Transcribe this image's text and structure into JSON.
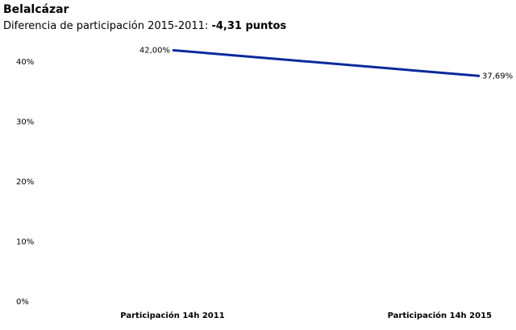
{
  "chart_data": {
    "type": "line",
    "title": "Belalcázar",
    "subtitle": "Diferencia de participación 2015-2011:",
    "subtitle_value": "-4,31 puntos",
    "categories": [
      "Participación 14h 2011",
      "Participación 14h 2015"
    ],
    "series": [
      {
        "name": "Participación",
        "color": "#0a2a9c",
        "values": [
          42.0,
          37.69
        ],
        "value_labels": [
          "42,00%",
          "37,69%"
        ]
      }
    ],
    "ylim": [
      0,
      45
    ],
    "yticks": [
      {
        "value": 0,
        "label": "0%"
      },
      {
        "value": 10,
        "label": "10%"
      },
      {
        "value": 20,
        "label": "20%"
      },
      {
        "value": 30,
        "label": "30%"
      },
      {
        "value": 40,
        "label": "40%"
      }
    ],
    "grid": false
  }
}
